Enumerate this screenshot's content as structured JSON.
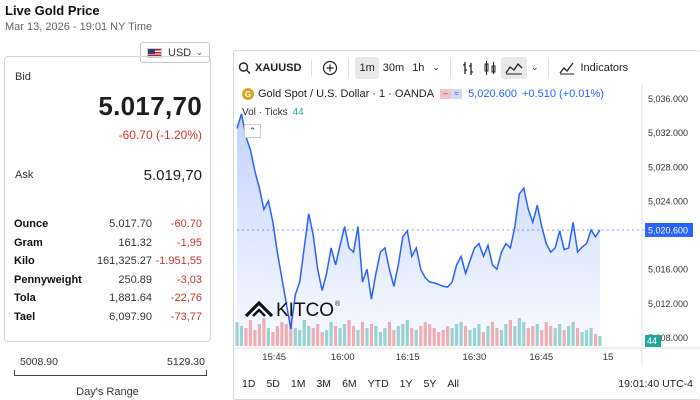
{
  "header": {
    "title": "Live Gold Price",
    "datetime": "Mar 13, 2026 - 19:01 NY Time"
  },
  "currency": {
    "code": "USD",
    "flag": "us-flag-icon"
  },
  "quote": {
    "bid_label": "Bid",
    "bid": "5.017,70",
    "change": "-60.70 (-1.20%)",
    "ask_label": "Ask",
    "ask": "5.019,70",
    "change_color": "#cc3333"
  },
  "units": [
    {
      "name": "Ounce",
      "price": "5.017.70",
      "change": "-60.70"
    },
    {
      "name": "Gram",
      "price": "161.32",
      "change": "-1,95"
    },
    {
      "name": "Kilo",
      "price": "161,325.27",
      "change": "-1.951,55"
    },
    {
      "name": "Pennyweight",
      "price": "250.89",
      "change": "-3,03"
    },
    {
      "name": "Tola",
      "price": "1,881.64",
      "change": "-22,76"
    },
    {
      "name": "Tael",
      "price": "6,097.90",
      "change": "-73,77"
    }
  ],
  "range": {
    "low": "5008.90",
    "high": "5129.30",
    "label": "Day's Range"
  },
  "toolbar": {
    "symbol": "XAUUSD",
    "intervals": [
      "1m",
      "30m",
      "1h"
    ],
    "active_interval": "1m",
    "indicators": "Indicators"
  },
  "legend": {
    "title": "Gold Spot / U.S. Dollar · 1 · OANDA",
    "price": "5,020.600",
    "change": "+0.510 (+0.01%)",
    "vol_label": "Vol · Ticks",
    "vol_value": "44"
  },
  "brand": {
    "logo_text": "KITCO"
  },
  "bottom": {
    "ranges": [
      "1D",
      "5D",
      "1M",
      "3M",
      "6M",
      "YTD",
      "1Y",
      "5Y",
      "All"
    ],
    "clock": "19:01:40 UTC-4"
  },
  "colors": {
    "line": "#2962ff",
    "vol_up": "#26a69a",
    "vol_down": "#ef5350",
    "accent_gold": "#d9a328"
  },
  "chart_data": {
    "type": "line",
    "x_ticks": [
      "15:45",
      "16:00",
      "16:15",
      "16:30",
      "16:45",
      "15"
    ],
    "y_ticks": [
      "5,036.000",
      "5,032.000",
      "5,028.000",
      "5,024.000",
      "5,020.600",
      "5,016.000",
      "5,012.000",
      "5,008.000"
    ],
    "ylim": [
      5007,
      5037
    ],
    "last_price_label": "5,020.600",
    "volume_label": "44",
    "series": [
      {
        "values": [
          5032.5,
          5034.2,
          5031.5,
          5030.0,
          5027.5,
          5025.5,
          5023.0,
          5024.0,
          5021.5,
          5018.0,
          5015.0,
          5012.0,
          5009.0,
          5013.0,
          5014.5,
          5018.5,
          5022.5,
          5020.0,
          5016.0,
          5013.5,
          5015.5,
          5018.5,
          5016.5,
          5018.8,
          5021.0,
          5018.5,
          5018.0,
          5021.0,
          5014.5,
          5016.0,
          5012.5,
          5015.5,
          5018.0,
          5018.5,
          5016.0,
          5014.0,
          5016.5,
          5019.8,
          5020.5,
          5017.5,
          5018.5,
          5016.0,
          5015.0,
          5014.5,
          5014.4,
          5014.2,
          5014.0,
          5013.9,
          5014.5,
          5016.5,
          5017.5,
          5015.5,
          5017.0,
          5018.5,
          5019.0,
          5017.5,
          5018.8,
          5016.5,
          5016.0,
          5018.0,
          5019.0,
          5018.5,
          5021.0,
          5024.8,
          5025.5,
          5023.0,
          5021.5,
          5023.5,
          5021.0,
          5019.0,
          5018.0,
          5018.5,
          5020.5,
          5018.3,
          5018.5,
          5021.5,
          5018.0,
          5018.6,
          5019.0,
          5020.6,
          5019.8,
          5020.6
        ]
      }
    ],
    "volume": [
      12,
      10,
      9,
      13,
      8,
      11,
      14,
      9,
      7,
      10,
      12,
      11,
      15,
      9,
      8,
      13,
      10,
      9,
      11,
      7,
      8,
      12,
      10,
      9,
      11,
      13,
      10,
      8,
      12,
      9,
      11,
      10,
      7,
      9,
      12,
      8,
      10,
      11,
      13,
      9,
      8,
      10,
      12,
      11,
      9,
      7,
      8,
      10,
      9,
      11,
      12,
      10,
      8,
      9,
      11,
      7,
      10,
      12,
      9,
      8,
      11,
      13,
      10,
      14,
      12,
      9,
      10,
      11,
      8,
      12,
      10,
      9,
      11,
      8,
      10,
      12,
      9,
      7,
      8,
      9,
      6,
      5
    ]
  }
}
